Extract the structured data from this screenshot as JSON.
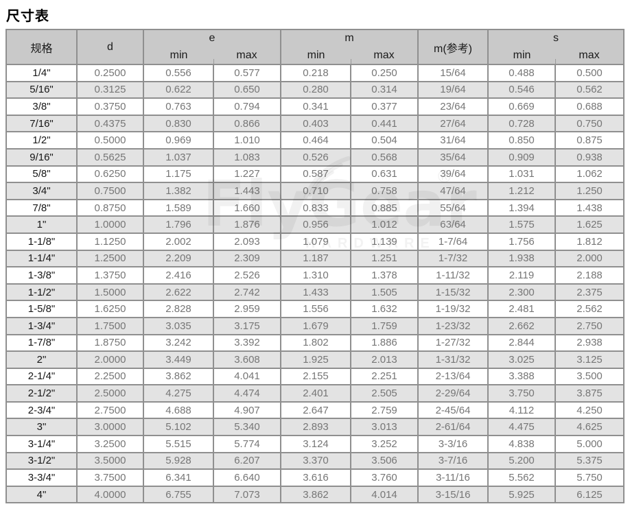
{
  "title": "尺寸表",
  "header": {
    "spec": "规格",
    "d": "d",
    "e": "e",
    "m": "m",
    "m_ref": "m(参考)",
    "s": "s",
    "min": "min",
    "max": "max"
  },
  "watermark": {
    "brand": "FlyGear",
    "registered": "®",
    "subtitle": "HARDWARE"
  },
  "colors": {
    "header_bg": "#c9c9c9",
    "row_alt_bg": "#e3e3e3",
    "border": "#8f8f8f",
    "data_text": "#767676",
    "spec_text": "#161616"
  },
  "table": {
    "columns": [
      "规格",
      "d",
      "e min",
      "e max",
      "m min",
      "m max",
      "m(参考)",
      "s min",
      "s max"
    ],
    "rows": [
      [
        "1/4\"",
        "0.2500",
        "0.556",
        "0.577",
        "0.218",
        "0.250",
        "15/64",
        "0.488",
        "0.500"
      ],
      [
        "5/16\"",
        "0.3125",
        "0.622",
        "0.650",
        "0.280",
        "0.314",
        "19/64",
        "0.546",
        "0.562"
      ],
      [
        "3/8\"",
        "0.3750",
        "0.763",
        "0.794",
        "0.341",
        "0.377",
        "23/64",
        "0.669",
        "0.688"
      ],
      [
        "7/16\"",
        "0.4375",
        "0.830",
        "0.866",
        "0.403",
        "0.441",
        "27/64",
        "0.728",
        "0.750"
      ],
      [
        "1/2\"",
        "0.5000",
        "0.969",
        "1.010",
        "0.464",
        "0.504",
        "31/64",
        "0.850",
        "0.875"
      ],
      [
        "9/16\"",
        "0.5625",
        "1.037",
        "1.083",
        "0.526",
        "0.568",
        "35/64",
        "0.909",
        "0.938"
      ],
      [
        "5/8\"",
        "0.6250",
        "1.175",
        "1.227",
        "0.587",
        "0.631",
        "39/64",
        "1.031",
        "1.062"
      ],
      [
        "3/4\"",
        "0.7500",
        "1.382",
        "1.443",
        "0.710",
        "0.758",
        "47/64",
        "1.212",
        "1.250"
      ],
      [
        "7/8\"",
        "0.8750",
        "1.589",
        "1.660",
        "0.833",
        "0.885",
        "55/64",
        "1.394",
        "1.438"
      ],
      [
        "1\"",
        "1.0000",
        "1.796",
        "1.876",
        "0.956",
        "1.012",
        "63/64",
        "1.575",
        "1.625"
      ],
      [
        "1-1/8\"",
        "1.1250",
        "2.002",
        "2.093",
        "1.079",
        "1.139",
        "1-7/64",
        "1.756",
        "1.812"
      ],
      [
        "1-1/4\"",
        "1.2500",
        "2.209",
        "2.309",
        "1.187",
        "1.251",
        "1-7/32",
        "1.938",
        "2.000"
      ],
      [
        "1-3/8\"",
        "1.3750",
        "2.416",
        "2.526",
        "1.310",
        "1.378",
        "1-11/32",
        "2.119",
        "2.188"
      ],
      [
        "1-1/2\"",
        "1.5000",
        "2.622",
        "2.742",
        "1.433",
        "1.505",
        "1-15/32",
        "2.300",
        "2.375"
      ],
      [
        "1-5/8\"",
        "1.6250",
        "2.828",
        "2.959",
        "1.556",
        "1.632",
        "1-19/32",
        "2.481",
        "2.562"
      ],
      [
        "1-3/4\"",
        "1.7500",
        "3.035",
        "3.175",
        "1.679",
        "1.759",
        "1-23/32",
        "2.662",
        "2.750"
      ],
      [
        "1-7/8\"",
        "1.8750",
        "3.242",
        "3.392",
        "1.802",
        "1.886",
        "1-27/32",
        "2.844",
        "2.938"
      ],
      [
        "2\"",
        "2.0000",
        "3.449",
        "3.608",
        "1.925",
        "2.013",
        "1-31/32",
        "3.025",
        "3.125"
      ],
      [
        "2-1/4\"",
        "2.2500",
        "3.862",
        "4.041",
        "2.155",
        "2.251",
        "2-13/64",
        "3.388",
        "3.500"
      ],
      [
        "2-1/2\"",
        "2.5000",
        "4.275",
        "4.474",
        "2.401",
        "2.505",
        "2-29/64",
        "3.750",
        "3.875"
      ],
      [
        "2-3/4\"",
        "2.7500",
        "4.688",
        "4.907",
        "2.647",
        "2.759",
        "2-45/64",
        "4.112",
        "4.250"
      ],
      [
        "3\"",
        "3.0000",
        "5.102",
        "5.340",
        "2.893",
        "3.013",
        "2-61/64",
        "4.475",
        "4.625"
      ],
      [
        "3-1/4\"",
        "3.2500",
        "5.515",
        "5.774",
        "3.124",
        "3.252",
        "3-3/16",
        "4.838",
        "5.000"
      ],
      [
        "3-1/2\"",
        "3.5000",
        "5.928",
        "6.207",
        "3.370",
        "3.506",
        "3-7/16",
        "5.200",
        "5.375"
      ],
      [
        "3-3/4\"",
        "3.7500",
        "6.341",
        "6.640",
        "3.616",
        "3.760",
        "3-11/16",
        "5.562",
        "5.750"
      ],
      [
        "4\"",
        "4.0000",
        "6.755",
        "7.073",
        "3.862",
        "4.014",
        "3-15/16",
        "5.925",
        "6.125"
      ]
    ]
  }
}
